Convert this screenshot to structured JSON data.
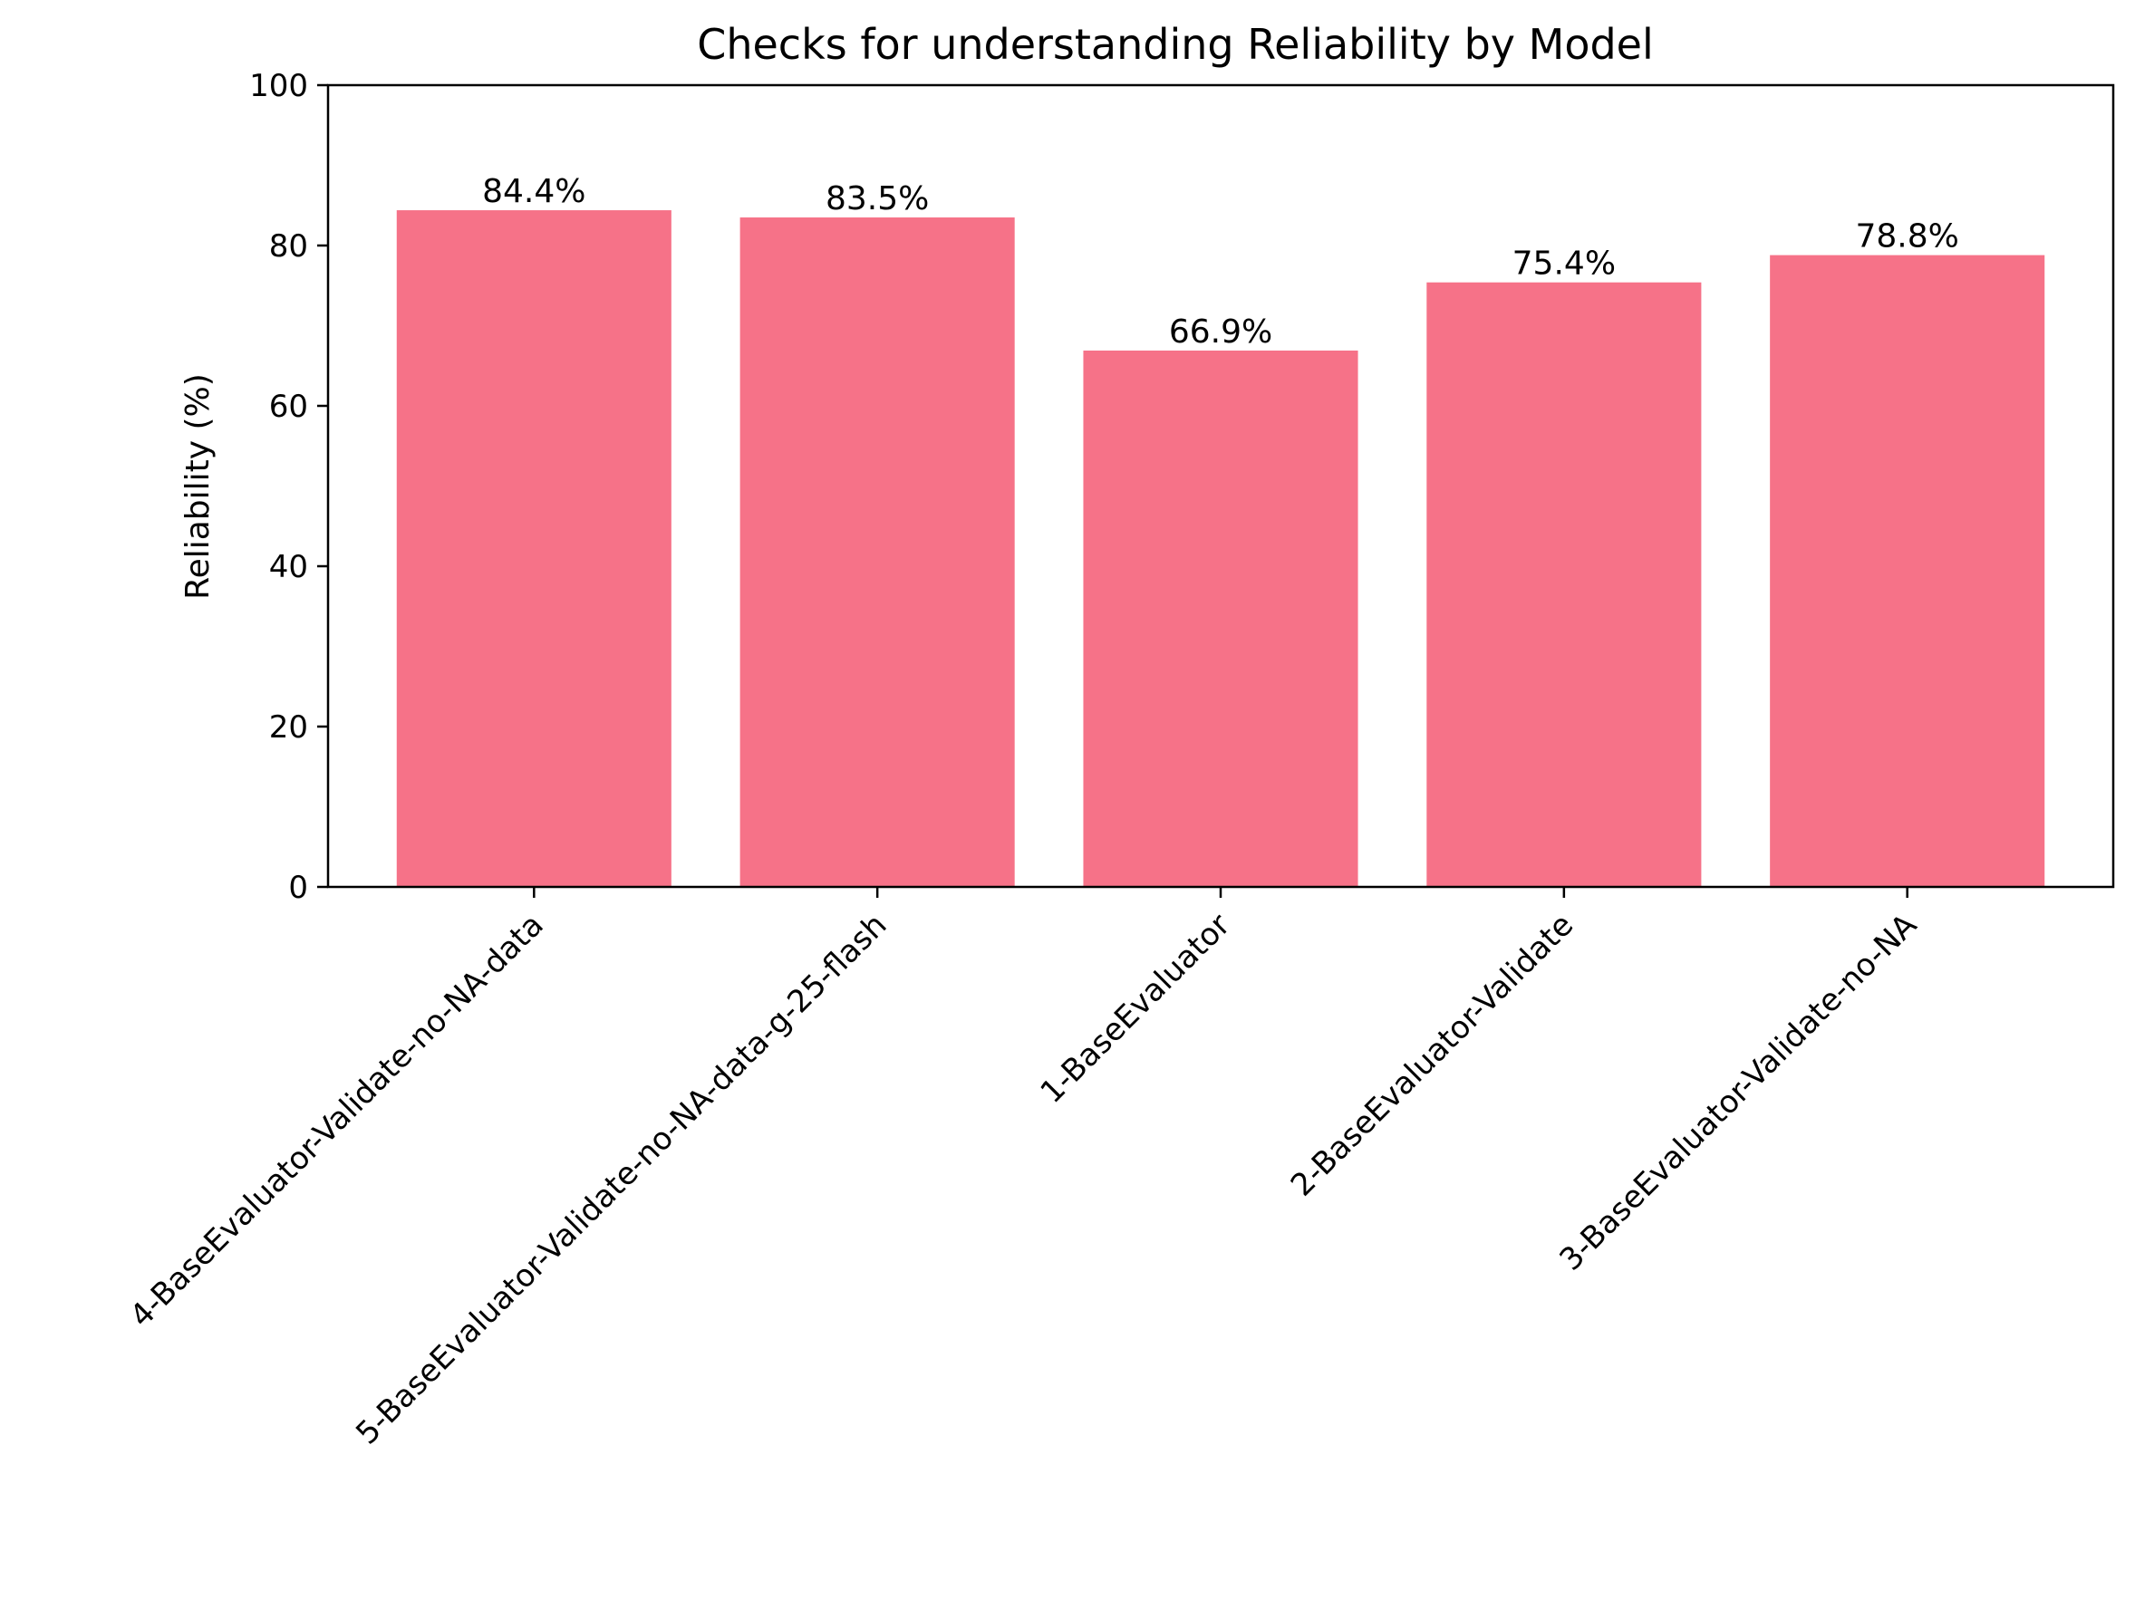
{
  "chart_data": {
    "type": "bar",
    "title": "Checks for understanding Reliability by Model",
    "xlabel": "",
    "ylabel": "Reliability (%)",
    "ylim": [
      0,
      100
    ],
    "yticks": [
      0,
      20,
      40,
      60,
      80,
      100
    ],
    "categories": [
      "4-BaseEvaluator-Validate-no-NA-data",
      "5-BaseEvaluator-Validate-no-NA-data-g-25-flash",
      "1-BaseEvaluator",
      "2-BaseEvaluator-Validate",
      "3-BaseEvaluator-Validate-no-NA"
    ],
    "values": [
      84.4,
      83.5,
      66.9,
      75.4,
      78.8
    ],
    "data_labels": [
      "84.4%",
      "83.5%",
      "66.9%",
      "75.4%",
      "78.8%"
    ],
    "bar_color": "#f67288",
    "grid": false,
    "legend": "none"
  }
}
